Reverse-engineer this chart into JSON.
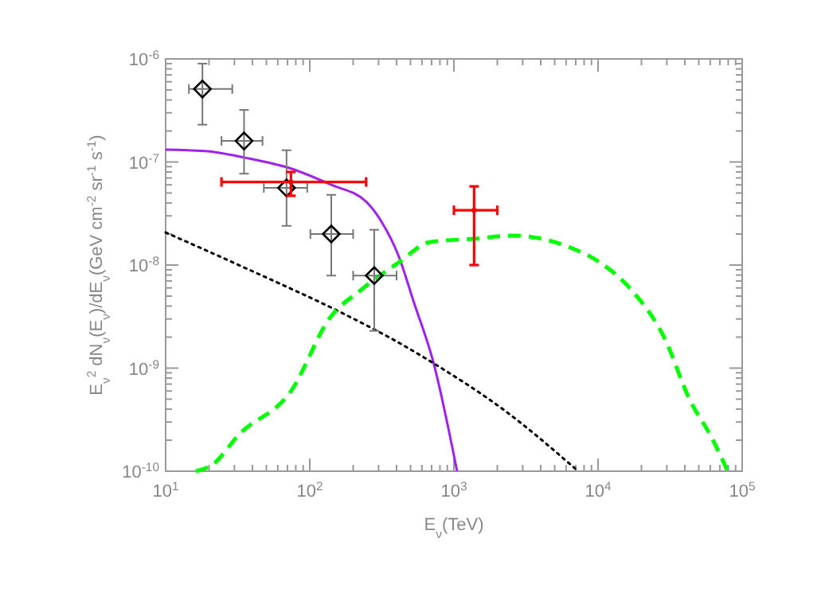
{
  "chart_data": {
    "type": "line",
    "xlabel": "E$_{ν}$(TeV)",
    "ylabel": "E$_{ν}$$^{2}$ dN$_{ν}$(E$_{ν}$)/dE$_{ν}$(GeV cm$^{-2}$ sr$^{-1}$ s$^{-1}$)",
    "log": "xy",
    "grid": false,
    "xlim": [
      10,
      100000
    ],
    "ylim": [
      1e-10,
      1e-06
    ],
    "xticks": [
      {
        "value": 10,
        "label": "10$^{1}$"
      },
      {
        "value": 20,
        "label": null
      },
      {
        "value": 30,
        "label": null
      },
      {
        "value": 40,
        "label": null
      },
      {
        "value": 50,
        "label": null
      },
      {
        "value": 60,
        "label": null
      },
      {
        "value": 70,
        "label": null
      },
      {
        "value": 80,
        "label": null
      },
      {
        "value": 90,
        "label": null
      },
      {
        "value": 100,
        "label": "10$^{2}$"
      },
      {
        "value": 200,
        "label": null
      },
      {
        "value": 300,
        "label": null
      },
      {
        "value": 400,
        "label": null
      },
      {
        "value": 500,
        "label": null
      },
      {
        "value": 600,
        "label": null
      },
      {
        "value": 700,
        "label": null
      },
      {
        "value": 800,
        "label": null
      },
      {
        "value": 900,
        "label": null
      },
      {
        "value": 1000,
        "label": "10$^{3}$"
      },
      {
        "value": 2000,
        "label": null
      },
      {
        "value": 3000,
        "label": null
      },
      {
        "value": 4000,
        "label": null
      },
      {
        "value": 5000,
        "label": null
      },
      {
        "value": 6000,
        "label": null
      },
      {
        "value": 7000,
        "label": null
      },
      {
        "value": 8000,
        "label": null
      },
      {
        "value": 9000,
        "label": null
      },
      {
        "value": 10000,
        "label": "10$^{4}$"
      },
      {
        "value": 20000,
        "label": null
      },
      {
        "value": 30000,
        "label": null
      },
      {
        "value": 40000,
        "label": null
      },
      {
        "value": 50000,
        "label": null
      },
      {
        "value": 60000,
        "label": null
      },
      {
        "value": 70000,
        "label": null
      },
      {
        "value": 80000,
        "label": null
      },
      {
        "value": 90000,
        "label": null
      },
      {
        "value": 100000,
        "label": "10$^{5}$"
      }
    ],
    "yticks": [
      {
        "value": 1e-10,
        "label": "10$^{-10}$"
      },
      {
        "value": 2e-10,
        "label": null
      },
      {
        "value": 3e-10,
        "label": null
      },
      {
        "value": 4e-10,
        "label": null
      },
      {
        "value": 5e-10,
        "label": null
      },
      {
        "value": 6e-10,
        "label": null
      },
      {
        "value": 7e-10,
        "label": null
      },
      {
        "value": 8e-10,
        "label": null
      },
      {
        "value": 9e-10,
        "label": null
      },
      {
        "value": 1e-09,
        "label": "10$^{-9}$"
      },
      {
        "value": 2e-09,
        "label": null
      },
      {
        "value": 3e-09,
        "label": null
      },
      {
        "value": 4e-09,
        "label": null
      },
      {
        "value": 5e-09,
        "label": null
      },
      {
        "value": 6e-09,
        "label": null
      },
      {
        "value": 7e-09,
        "label": null
      },
      {
        "value": 8e-09,
        "label": null
      },
      {
        "value": 9e-09,
        "label": null
      },
      {
        "value": 1e-08,
        "label": "10$^{-8}$"
      },
      {
        "value": 2e-08,
        "label": null
      },
      {
        "value": 3e-08,
        "label": null
      },
      {
        "value": 4e-08,
        "label": null
      },
      {
        "value": 5e-08,
        "label": null
      },
      {
        "value": 6e-08,
        "label": null
      },
      {
        "value": 7e-08,
        "label": null
      },
      {
        "value": 8e-08,
        "label": null
      },
      {
        "value": 9e-08,
        "label": null
      },
      {
        "value": 1e-07,
        "label": "10$^{-7}$"
      },
      {
        "value": 2e-07,
        "label": null
      },
      {
        "value": 3e-07,
        "label": null
      },
      {
        "value": 4e-07,
        "label": null
      },
      {
        "value": 5e-07,
        "label": null
      },
      {
        "value": 6e-07,
        "label": null
      },
      {
        "value": 7e-07,
        "label": null
      },
      {
        "value": 8e-07,
        "label": null
      },
      {
        "value": 9e-07,
        "label": null
      },
      {
        "value": 1e-06,
        "label": "10$^{-6}$"
      }
    ],
    "series": [
      {
        "color": "#a020f0",
        "line_style": "solid",
        "x": [
          10,
          19.4,
          35.6,
          74.7,
          141,
          247,
          318,
          410,
          529,
          718,
          1052
        ],
        "values": [
          1.32e-07,
          1.27e-07,
          1.1e-07,
          8.6e-08,
          6e-08,
          4.1e-08,
          2.57e-08,
          1.26e-08,
          4.3e-09,
          1.16e-09,
          1e-10
        ]
      },
      {
        "color": "#000000",
        "line_style": "dotted",
        "x": [
          10,
          41.6,
          177,
          410,
          718,
          2260,
          7280
        ],
        "values": [
          2.07e-08,
          8.5e-09,
          3.3e-09,
          1.78e-09,
          1.12e-09,
          3.86e-10,
          1e-10
        ]
      },
      {
        "color": "#00ff00",
        "line_style": "dashed",
        "x": [
          16.2,
          21,
          32.2,
          74.7,
          137,
          229,
          410,
          682,
          1393,
          2564,
          6250,
          10400,
          17300,
          28800,
          43200,
          61600,
          79400
        ],
        "values": [
          1e-10,
          1.15e-10,
          2.26e-10,
          6.1e-10,
          3.04e-09,
          5.8e-09,
          1.05e-08,
          1.67e-08,
          1.8e-08,
          1.93e-08,
          1.5e-08,
          1.05e-08,
          5.6e-09,
          1.98e-09,
          4.95e-10,
          2.1e-10,
          1e-10
        ]
      },
      {
        "type": "scatter",
        "color": "#000000",
        "marker": "diamond",
        "x": [
          18,
          35,
          69,
          141,
          280
        ],
        "values": [
          5.1e-07,
          1.6e-07,
          5.6e-08,
          2e-08,
          7.9e-09
        ],
        "errors": [
          [
            2.3e-07,
            9e-07
          ],
          [
            7.7e-08,
            3.2e-07
          ],
          [
            2.4e-08,
            1.3e-07
          ],
          [
            7.9e-09,
            4.8e-08
          ],
          [
            2.3e-09,
            2.2e-08
          ]
        ],
        "xerrors": [
          [
            14.5,
            29
          ],
          [
            24.4,
            47
          ],
          [
            48,
            96
          ],
          [
            101,
            200
          ],
          [
            200,
            400
          ]
        ]
      },
      {
        "type": "scatter",
        "color": "#ff0000",
        "x": [
          74,
          1380
        ],
        "values": [
          6.4e-08,
          3.4e-08
        ],
        "errors": [
          [
            4.7e-08,
            8e-08
          ],
          [
            1e-08,
            5.8e-08
          ]
        ],
        "xerrors": [
          [
            24.4,
            246
          ],
          [
            1000,
            2000
          ]
        ]
      }
    ]
  }
}
